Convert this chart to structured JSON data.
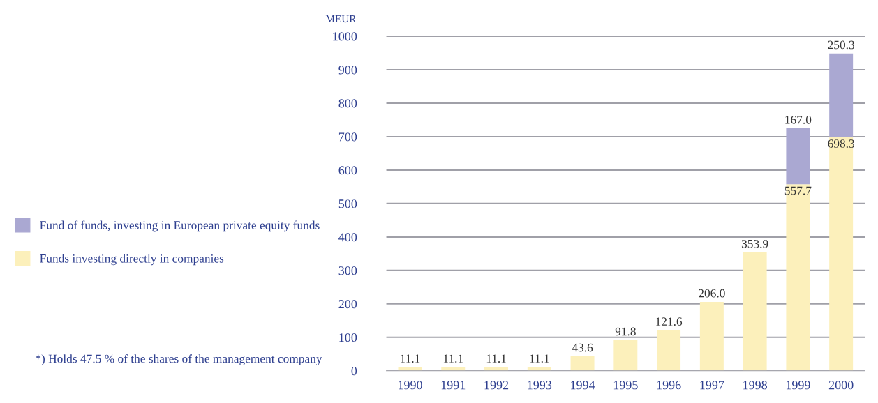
{
  "chart_data": {
    "type": "bar",
    "stacked": true,
    "ylabel": "MEUR",
    "categories": [
      "1990",
      "1991",
      "1992",
      "1993",
      "1994",
      "1995",
      "1996",
      "1997",
      "1998",
      "1999",
      "2000"
    ],
    "series": [
      {
        "name": "Funds investing directly in companies",
        "color": "#fcf0bb",
        "values": [
          11.1,
          11.1,
          11.1,
          11.1,
          43.6,
          91.8,
          121.6,
          206.0,
          353.9,
          557.7,
          698.3
        ],
        "value_labels": [
          "11.1",
          "11.1",
          "11.1",
          "11.1",
          "43.6",
          "91.8",
          "121.6",
          "206.0",
          "353.9",
          "557.7",
          "698.3"
        ]
      },
      {
        "name": "Fund of funds, investing in European private equity funds",
        "color": "#aaa8d2",
        "values": [
          null,
          null,
          null,
          null,
          null,
          null,
          null,
          null,
          null,
          167.0,
          250.3
        ],
        "value_labels": [
          null,
          null,
          null,
          null,
          null,
          null,
          null,
          null,
          null,
          "167.0",
          "250.3"
        ]
      }
    ],
    "ylim": [
      0,
      1000
    ],
    "yticks": [
      0,
      100,
      200,
      300,
      400,
      500,
      600,
      700,
      800,
      900,
      1000
    ],
    "grid": "y",
    "legend": "left",
    "annotations": [
      "*) Holds 47.5 % of the shares of the management company"
    ]
  }
}
